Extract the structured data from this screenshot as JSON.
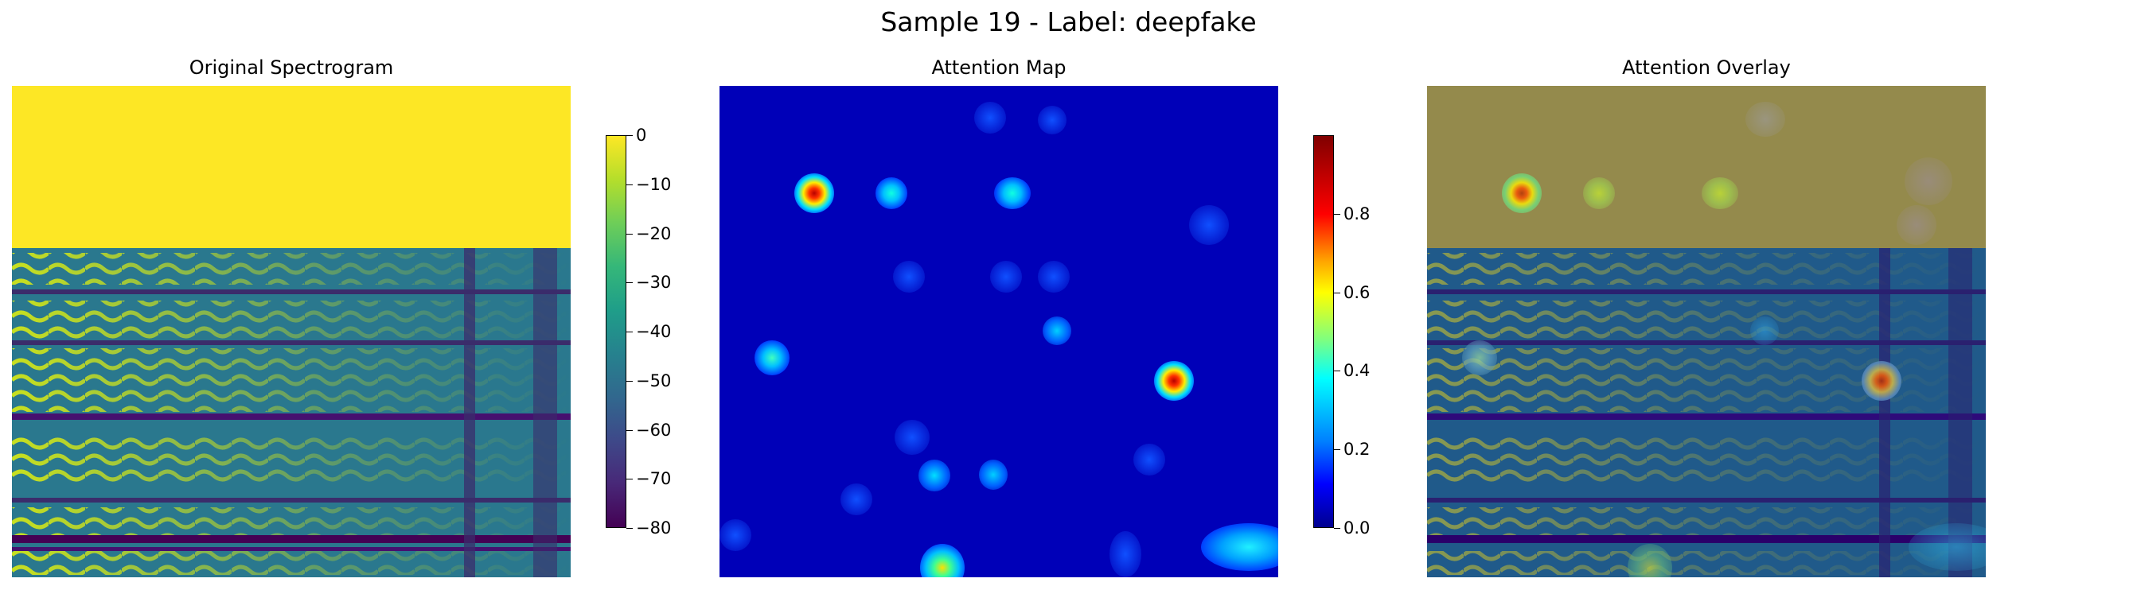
{
  "figure": {
    "suptitle": "Sample 19 - Label: deepfake"
  },
  "panels": {
    "original": {
      "title": "Original Spectrogram"
    },
    "attention": {
      "title": "Attention Map"
    },
    "overlay": {
      "title": "Attention Overlay"
    }
  },
  "chart_data": [
    {
      "type": "heatmap",
      "title": "Original Spectrogram",
      "colormap": "viridis",
      "colorbar": {
        "min": -80,
        "max": 0,
        "ticks": [
          "0",
          "−10",
          "−20",
          "−30",
          "−40",
          "−50",
          "−60",
          "−70",
          "−80"
        ]
      },
      "axes_visible": false
    },
    {
      "type": "heatmap",
      "title": "Attention Map",
      "colormap": "jet",
      "colorbar": {
        "min": 0.0,
        "max": 1.0,
        "ticks": [
          "0.0",
          "0.2",
          "0.4",
          "0.6",
          "0.8"
        ]
      },
      "axes_visible": false
    },
    {
      "type": "heatmap",
      "title": "Attention Overlay",
      "colormap": "jet over viridis",
      "axes_visible": false
    }
  ]
}
